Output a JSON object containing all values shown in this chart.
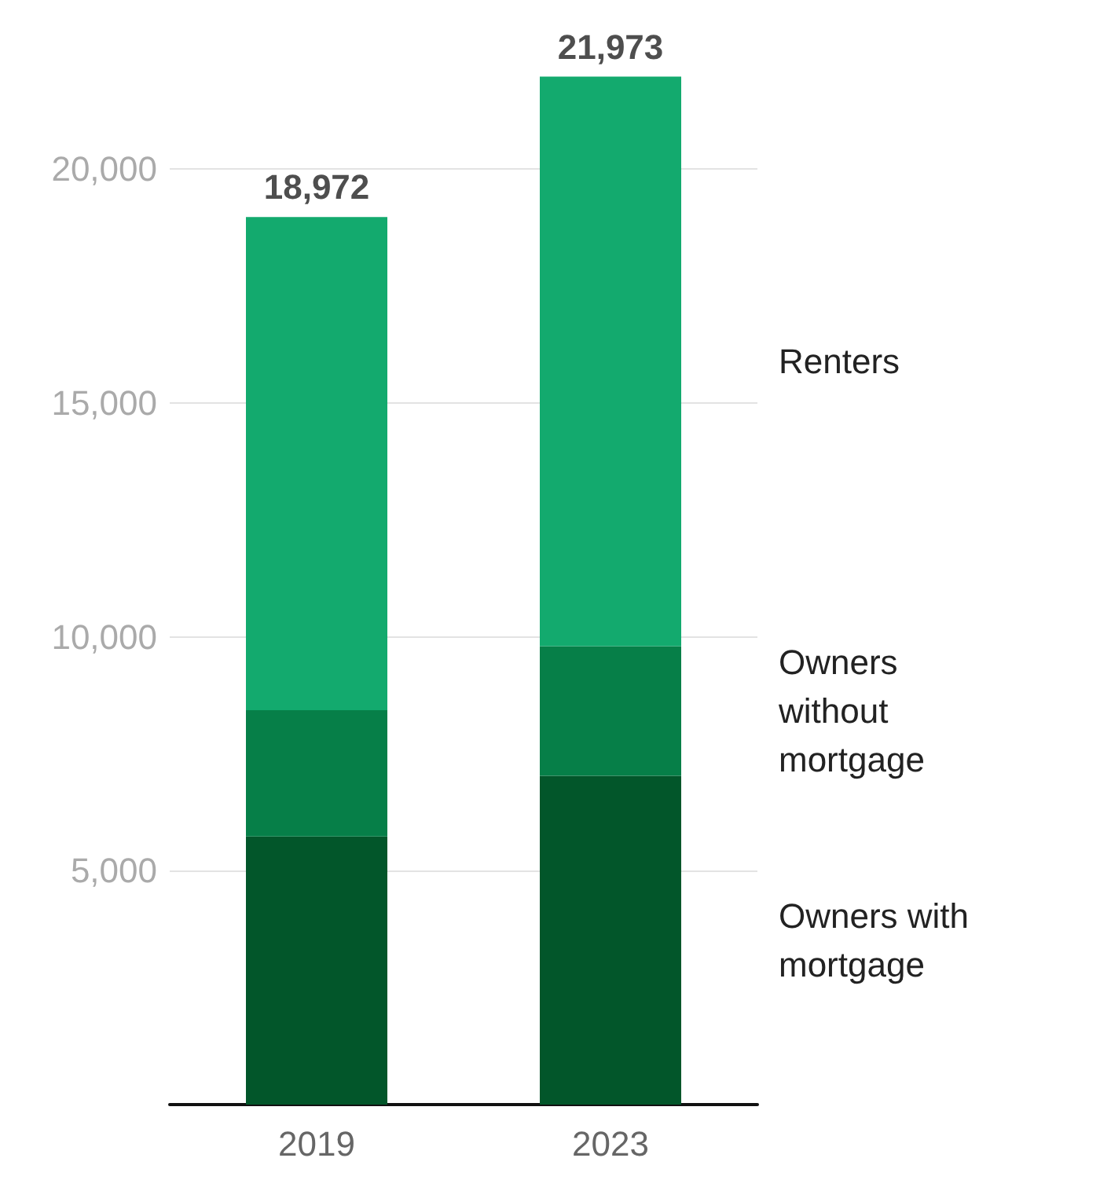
{
  "chart_data": {
    "type": "bar",
    "stacked": true,
    "categories": [
      "2019",
      "2023"
    ],
    "series": [
      {
        "name": "Owners with\nmortgage",
        "color": "#02562a",
        "values": [
          5730,
          7030
        ]
      },
      {
        "name": "Owners\nwithout\nmortgage",
        "color": "#067f48",
        "values": [
          2700,
          2770
        ]
      },
      {
        "name": "Renters",
        "color": "#13aa6e",
        "values": [
          10542,
          12173
        ]
      }
    ],
    "totals": [
      "18,972",
      "21,973"
    ],
    "ylim": [
      0,
      22000
    ],
    "yticks": [
      {
        "value": 5000,
        "label": "5,000"
      },
      {
        "value": 10000,
        "label": "10,000"
      },
      {
        "value": 15000,
        "label": "15,000"
      },
      {
        "value": 20000,
        "label": "20,000"
      }
    ],
    "grid": "y",
    "legend": false
  }
}
